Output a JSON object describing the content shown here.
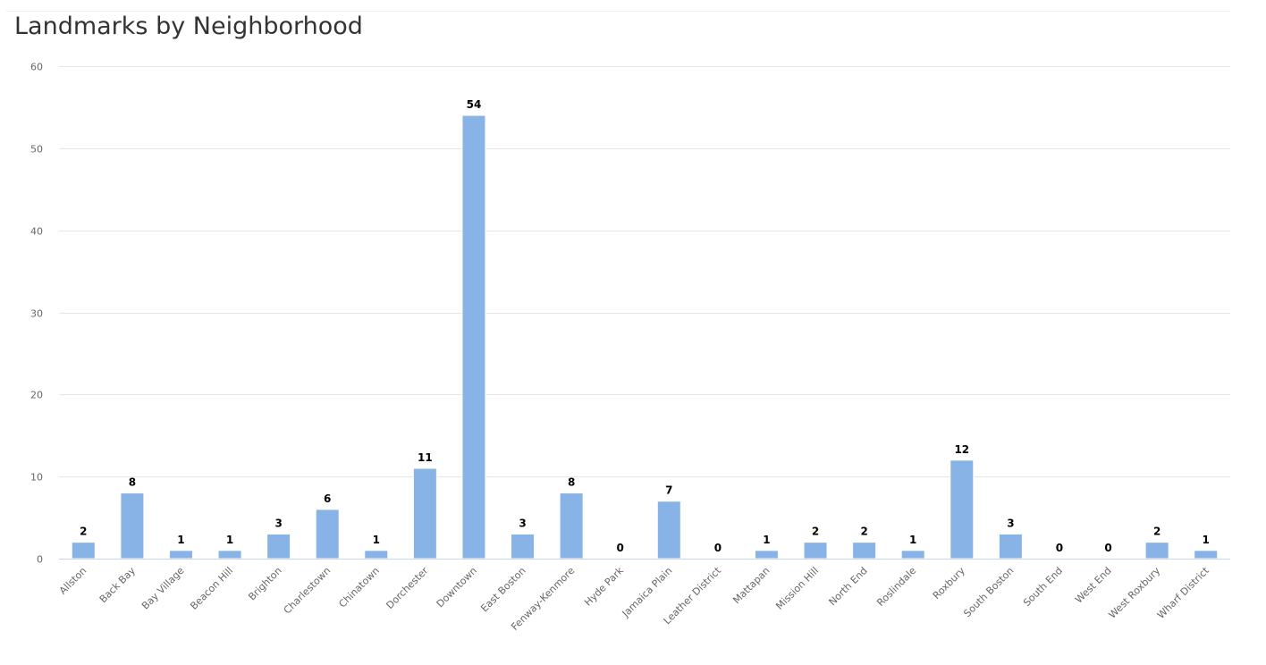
{
  "chart_data": {
    "type": "bar",
    "title": "Landmarks by Neighborhood",
    "xlabel": "",
    "ylabel": "",
    "ylim": [
      0,
      60
    ],
    "yticks": [
      0,
      10,
      20,
      30,
      40,
      50,
      60
    ],
    "grid": true,
    "legend": null,
    "bar_color": "#88b3e6",
    "categories": [
      "Allston",
      "Back Bay",
      "Bay Village",
      "Beacon Hill",
      "Brighton",
      "Charlestown",
      "Chinatown",
      "Dorchester",
      "Downtown",
      "East Boston",
      "Fenway-Kenmore",
      "Hyde Park",
      "Jamaica Plain",
      "Leather District",
      "Mattapan",
      "Mission Hill",
      "North End",
      "Roslindale",
      "Roxbury",
      "South Boston",
      "South End",
      "West End",
      "West Roxbury",
      "Wharf District"
    ],
    "values": [
      2,
      8,
      1,
      1,
      3,
      6,
      1,
      11,
      54,
      3,
      8,
      0,
      7,
      0,
      1,
      2,
      2,
      1,
      12,
      3,
      0,
      0,
      2,
      1
    ]
  }
}
